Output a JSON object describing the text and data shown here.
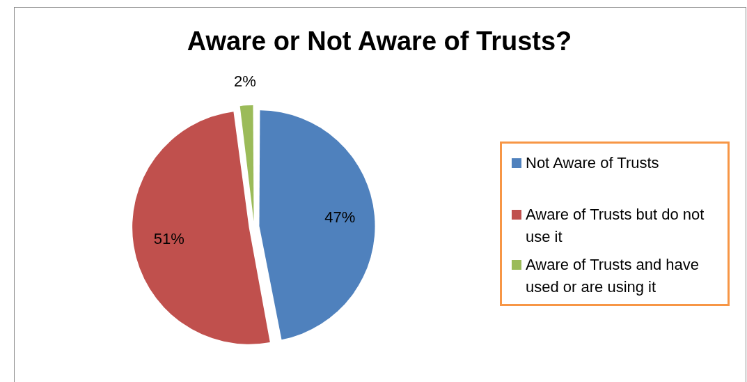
{
  "chart_data": {
    "type": "pie",
    "title": "Aware or Not Aware of Trusts?",
    "categories": [
      "Not Aware of Trusts",
      "Aware of Trusts but do not use it",
      "Aware of Trusts and have used or are using it"
    ],
    "values": [
      47,
      51,
      2
    ],
    "colors": [
      "#4f81bd",
      "#c0504d",
      "#9bbb59"
    ],
    "value_labels": [
      "47%",
      "51%",
      "2%"
    ],
    "legend": "right"
  }
}
